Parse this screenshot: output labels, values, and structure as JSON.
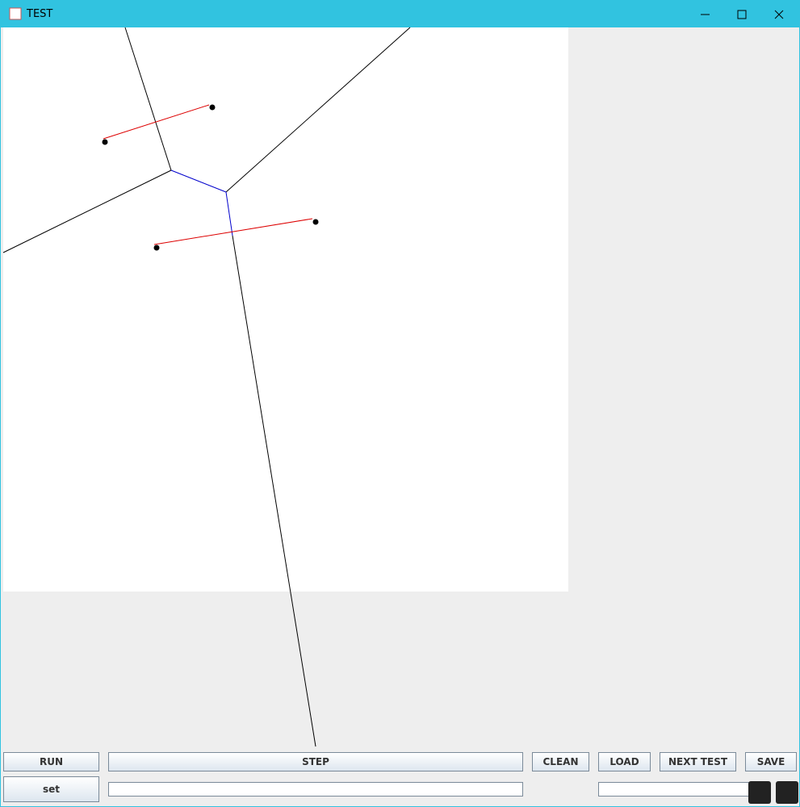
{
  "window": {
    "title": "TEST"
  },
  "buttons": {
    "run": "RUN",
    "step": "STEP",
    "clean": "CLEAN",
    "load": "LOAD",
    "next_test": "NEXT TEST",
    "save": "SAVE",
    "set": "set"
  }
}
